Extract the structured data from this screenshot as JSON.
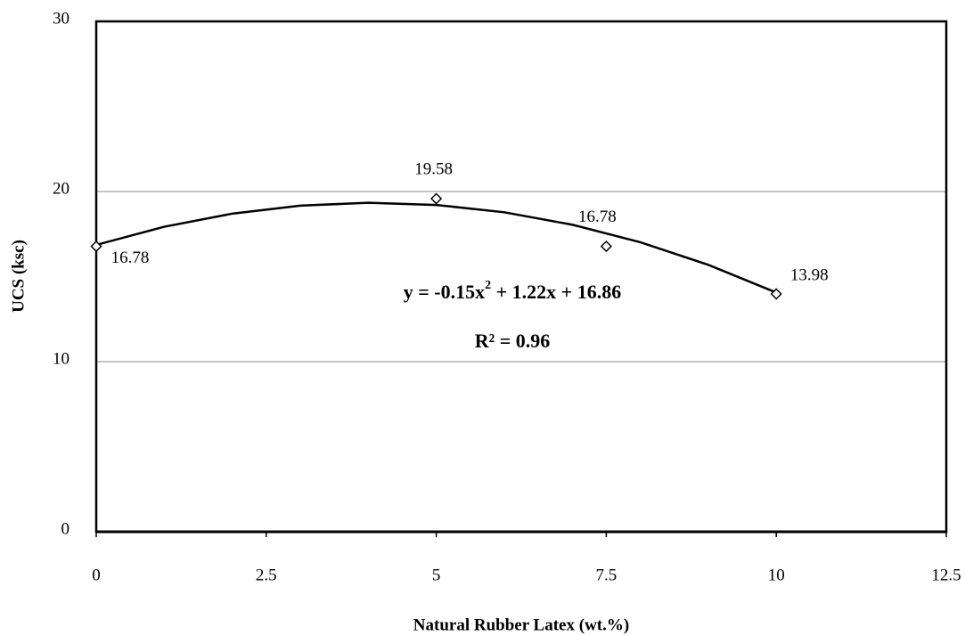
{
  "chart_data": {
    "type": "scatter",
    "x_label": "Natural Rubber Latex  (wt.%)",
    "y_label": "UCS (ksc)",
    "x": [
      0,
      5,
      7.5,
      10
    ],
    "values": [
      16.78,
      19.58,
      16.78,
      13.98
    ],
    "marker_color": "#000000",
    "trendline": {
      "x": [
        0,
        1,
        2,
        3,
        4,
        5,
        6,
        7,
        8,
        9,
        10
      ],
      "values": [
        16.86,
        17.93,
        18.7,
        19.17,
        19.34,
        19.21,
        18.78,
        18.05,
        17.02,
        15.69,
        14.06
      ],
      "color": "#000000"
    },
    "equation": {
      "base": "y = -0.15x",
      "exponent": "2",
      "rest": " + 1.22x + 16.86"
    },
    "r_squared": "R² = 0.96",
    "xlim": [
      0,
      12.5
    ],
    "xticks": [
      0,
      2.5,
      5,
      7.5,
      10,
      12.5
    ],
    "ylim": [
      0,
      30
    ],
    "yticks": [
      0,
      10,
      20,
      30
    ],
    "grid": true
  }
}
